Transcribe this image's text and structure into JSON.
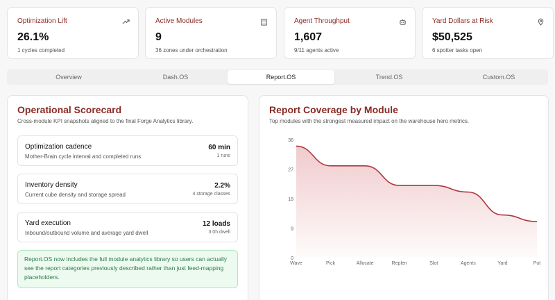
{
  "kpis": [
    {
      "label": "Optimization Lift",
      "value": "26.1%",
      "sub": "1 cycles completed",
      "icon": "trend-up-icon"
    },
    {
      "label": "Active Modules",
      "value": "9",
      "sub": "36 zones under orchestration",
      "icon": "building-icon"
    },
    {
      "label": "Agent Throughput",
      "value": "1,607",
      "sub": "9/11 agents active",
      "icon": "robot-icon"
    },
    {
      "label": "Yard Dollars at Risk",
      "value": "$50,525",
      "sub": "6 spotter tasks open",
      "icon": "map-pin-icon"
    }
  ],
  "tabs": [
    "Overview",
    "Dash.OS",
    "Report.OS",
    "Trend.OS",
    "Custom.OS"
  ],
  "active_tab": "Report.OS",
  "scorecard": {
    "title": "Operational Scorecard",
    "subtitle": "Cross-module KPI snapshots aligned to the final Forge Analytics library.",
    "rows": [
      {
        "title": "Optimization cadence",
        "sub": "Mother-Brain cycle interval and completed runs",
        "value": "60 min",
        "note": "1 runs"
      },
      {
        "title": "Inventory density",
        "sub": "Current cube density and storage spread",
        "value": "2.2%",
        "note": "4 storage classes"
      },
      {
        "title": "Yard execution",
        "sub": "Inbound/outbound volume and average yard dwell",
        "value": "12 loads",
        "note": "3.0h dwell"
      }
    ],
    "note": "Report.OS now includes the full module analytics library so users can actually see the report categories previously described rather than just feed-mapping placeholders."
  },
  "coverage": {
    "title": "Report Coverage by Module",
    "subtitle": "Top modules with the strongest measured impact on the warehouse hero metrics."
  },
  "colors": {
    "accent": "#8b2a24",
    "line": "#b0383e",
    "note_bg": "#ecfaf0",
    "note_text": "#2f7a45"
  },
  "chart_data": {
    "type": "area",
    "categories": [
      "Wave",
      "Pick",
      "Allocate",
      "Replen",
      "Slot",
      "Agents",
      "Yard",
      "Put"
    ],
    "values": [
      34,
      28,
      28,
      22,
      22,
      20,
      13,
      11
    ],
    "yticks": [
      "0",
      "9",
      "18",
      "27",
      "36"
    ],
    "ylim": [
      0,
      36
    ],
    "grid": false,
    "title": "",
    "xlabel": "",
    "ylabel": ""
  }
}
